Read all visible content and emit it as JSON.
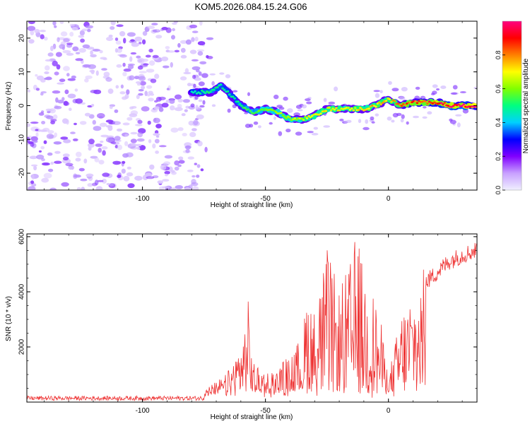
{
  "title": "KOM5.2026.084.15.24.G06",
  "chart_data": [
    {
      "type": "heatmap",
      "name": "spectrogram",
      "xlabel": "Height of straight line (km)",
      "ylabel": "Frequency (Hz)",
      "xlim": [
        -147,
        36
      ],
      "ylim": [
        -25,
        25
      ],
      "xticks": [
        -100,
        -50,
        0
      ],
      "yticks": [
        20,
        10,
        0,
        -10,
        -20
      ],
      "colorbar": {
        "label": "Normalized spectral amplitude",
        "range": [
          0,
          1
        ],
        "ticks": [
          "0.0",
          "0.2",
          "0.4",
          "0.6",
          "0.8"
        ],
        "colors": [
          "#f0f0ff",
          "#c8a0ff",
          "#8000ff",
          "#0000ff",
          "#00d0ff",
          "#00ff80",
          "#80ff00",
          "#ffff00",
          "#ff8000",
          "#ff0000",
          "#ff0080"
        ]
      },
      "ridge": {
        "description": "dominant frequency track",
        "x": [
          -80,
          -72,
          -68,
          -64,
          -60,
          -55,
          -50,
          -45,
          -40,
          -35,
          -30,
          -25,
          -20,
          -15,
          -10,
          -5,
          0,
          5,
          10,
          15,
          20,
          25,
          30,
          36
        ],
        "y": [
          4,
          4,
          6,
          3,
          0,
          -2,
          -1,
          -2,
          -4,
          -4,
          -3,
          -1,
          -1,
          -1,
          -1,
          0,
          2,
          0,
          1,
          1,
          1,
          0,
          0,
          0
        ],
        "amplitude": [
          0.15,
          0.25,
          0.2,
          0.2,
          0.25,
          0.3,
          0.35,
          0.4,
          0.45,
          0.45,
          0.5,
          0.55,
          0.5,
          0.5,
          0.55,
          0.6,
          0.55,
          0.7,
          0.75,
          0.8,
          0.85,
          0.9,
          0.95,
          0.95
        ]
      },
      "noise_region": {
        "x_from": -147,
        "x_to": -75,
        "amplitude": 0.1
      }
    },
    {
      "type": "line",
      "name": "snr",
      "xlabel": "Height of straight line (km)",
      "ylabel": "SNR (10 * v/v)",
      "xlim": [
        -147,
        36
      ],
      "ylim": [
        0,
        6100
      ],
      "xticks": [
        -100,
        -50,
        0
      ],
      "yticks": [
        2000,
        4000,
        6000
      ],
      "color": "#ee3333",
      "envelope": {
        "x": [
          -147,
          -80,
          -75,
          -70,
          -65,
          -60,
          -57,
          -55,
          -50,
          -45,
          -40,
          -35,
          -33,
          -30,
          -25,
          -20,
          -15,
          -13,
          -10,
          -5,
          -2,
          0,
          5,
          10,
          15,
          20,
          25,
          30,
          36
        ],
        "y": [
          80,
          80,
          150,
          300,
          800,
          2000,
          3300,
          1200,
          700,
          900,
          1500,
          2000,
          4100,
          3200,
          5300,
          3800,
          4900,
          6000,
          4600,
          3500,
          2000,
          500,
          3000,
          4000,
          4500,
          4900,
          5300,
          5500,
          5700
        ]
      }
    }
  ]
}
